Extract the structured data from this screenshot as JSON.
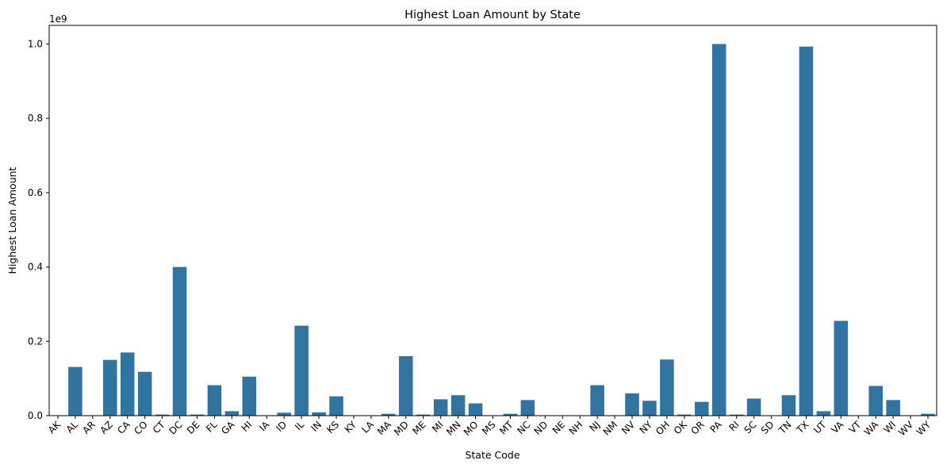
{
  "chart_data": {
    "type": "bar",
    "title": "Highest Loan Amount by State",
    "xlabel": "State Code",
    "ylabel": "Highest Loan Amount",
    "y_multiplier_label": "1e9",
    "ylim": [
      0,
      1.05
    ],
    "y_ticks": [
      0.0,
      0.2,
      0.4,
      0.6,
      0.8,
      1.0
    ],
    "y_tick_labels": [
      "0.0",
      "0.2",
      "0.4",
      "0.6",
      "0.8",
      "1.0"
    ],
    "grid": false,
    "bar_color": "#3274a1",
    "categories": [
      "AK",
      "AL",
      "AR",
      "AZ",
      "CA",
      "CO",
      "CT",
      "DC",
      "DE",
      "FL",
      "GA",
      "HI",
      "IA",
      "ID",
      "IL",
      "IN",
      "KS",
      "KY",
      "LA",
      "MA",
      "MD",
      "ME",
      "MI",
      "MN",
      "MO",
      "MS",
      "MT",
      "NC",
      "ND",
      "NE",
      "NH",
      "NJ",
      "NM",
      "NV",
      "NY",
      "OH",
      "OK",
      "OR",
      "PA",
      "RI",
      "SC",
      "SD",
      "TN",
      "TX",
      "UT",
      "VA",
      "VT",
      "WA",
      "WI",
      "WV",
      "WY"
    ],
    "values": [
      0.0,
      0.131,
      0.0,
      0.15,
      0.17,
      0.118,
      0.003,
      0.4,
      0.003,
      0.082,
      0.012,
      0.105,
      0.0,
      0.008,
      0.242,
      0.009,
      0.052,
      0.0,
      0.0,
      0.005,
      0.16,
      0.003,
      0.044,
      0.055,
      0.033,
      0.0,
      0.005,
      0.042,
      0.0,
      0.0,
      0.0,
      0.082,
      0.0,
      0.06,
      0.04,
      0.151,
      0.003,
      0.037,
      1.0,
      0.003,
      0.046,
      0.0,
      0.055,
      0.993,
      0.012,
      0.255,
      0.0,
      0.08,
      0.042,
      0.0,
      0.005
    ]
  }
}
